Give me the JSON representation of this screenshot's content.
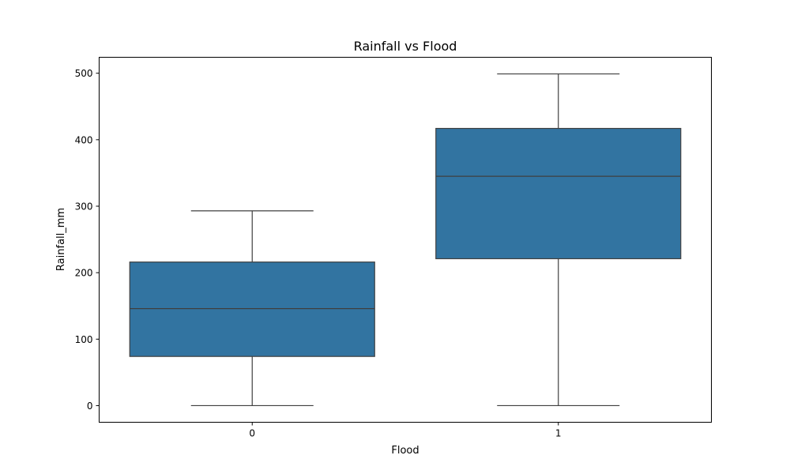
{
  "chart_data": {
    "type": "box",
    "title": "Rainfall vs Flood",
    "xlabel": "Flood",
    "ylabel": "Rainfall_mm",
    "categories": [
      "0",
      "1"
    ],
    "boxes": [
      {
        "category": "0",
        "whisker_low": 0,
        "q1": 74,
        "median": 146,
        "q3": 216,
        "whisker_high": 293
      },
      {
        "category": "1",
        "whisker_low": 0,
        "q1": 221,
        "median": 345,
        "q3": 417,
        "whisker_high": 499
      }
    ],
    "ylim": [
      -25,
      524
    ],
    "yticks": [
      0,
      100,
      200,
      300,
      400,
      500
    ],
    "grid": false,
    "colors": {
      "box_fill": "#3274a1",
      "line": "#3f3f3f",
      "axes": "#000000"
    }
  }
}
